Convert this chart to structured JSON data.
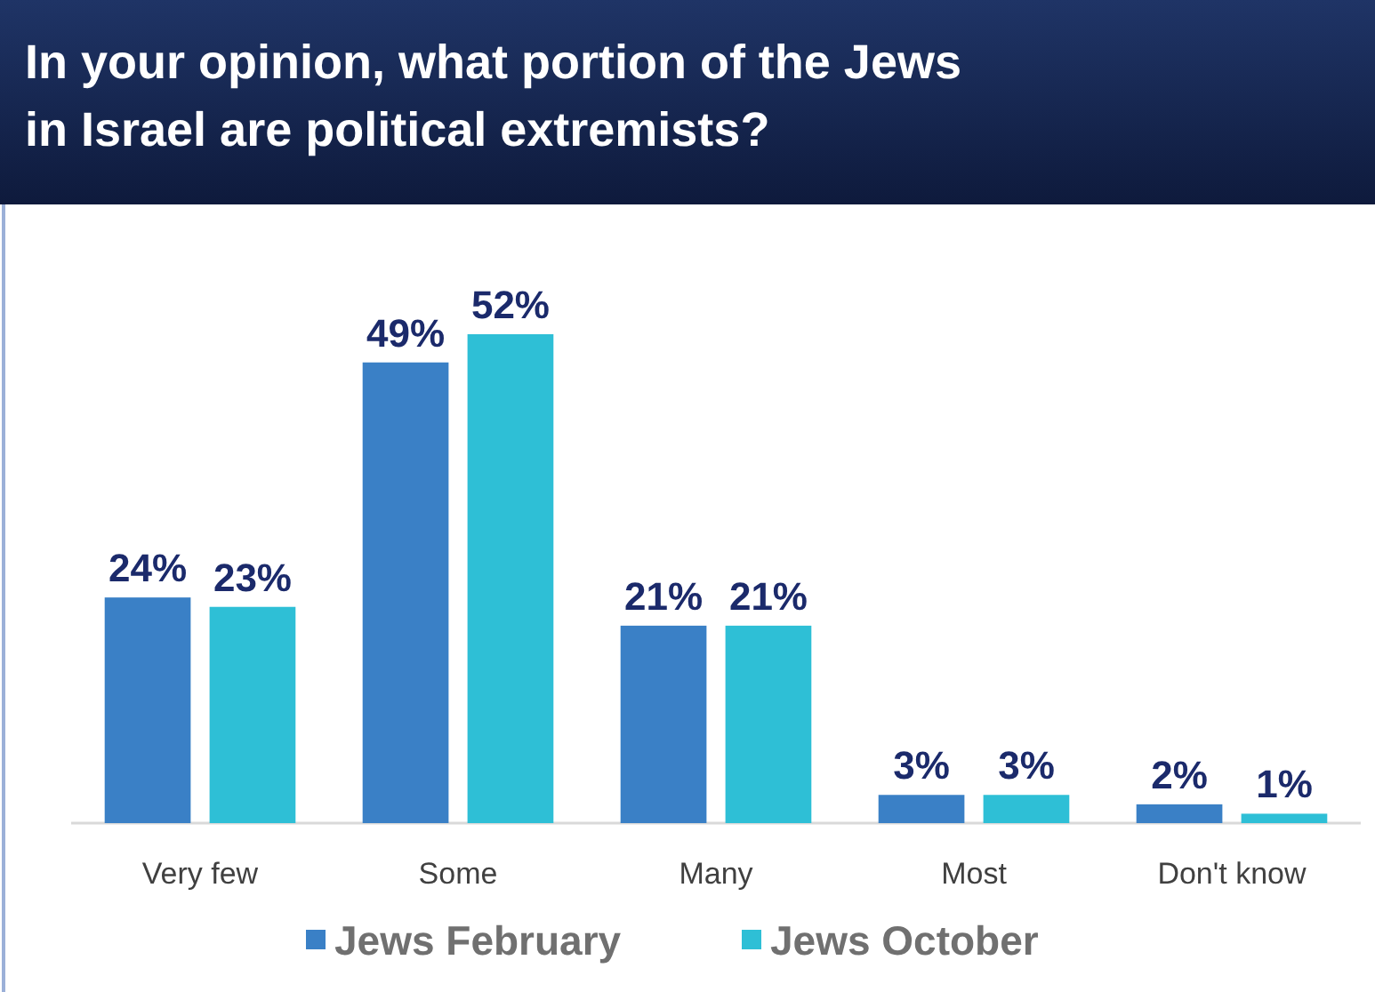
{
  "chart_data": {
    "type": "bar",
    "title": "In your opinion, what portion of the Jews in Israel are  political extremists?",
    "categories": [
      "Very few",
      "Some",
      "Many",
      "Most",
      "Don't know"
    ],
    "series": [
      {
        "name": "Jews February",
        "color": "#3a80c6",
        "values": [
          24,
          49,
          21,
          3,
          2
        ],
        "value_labels": [
          "24%",
          "49%",
          "21%",
          "3%",
          "2%"
        ]
      },
      {
        "name": "Jews October",
        "color": "#2ebfd6",
        "values": [
          23,
          52,
          21,
          3,
          1
        ],
        "value_labels": [
          "23%",
          "52%",
          "21%",
          "3%",
          "1%"
        ]
      }
    ],
    "legend": "bottom"
  }
}
